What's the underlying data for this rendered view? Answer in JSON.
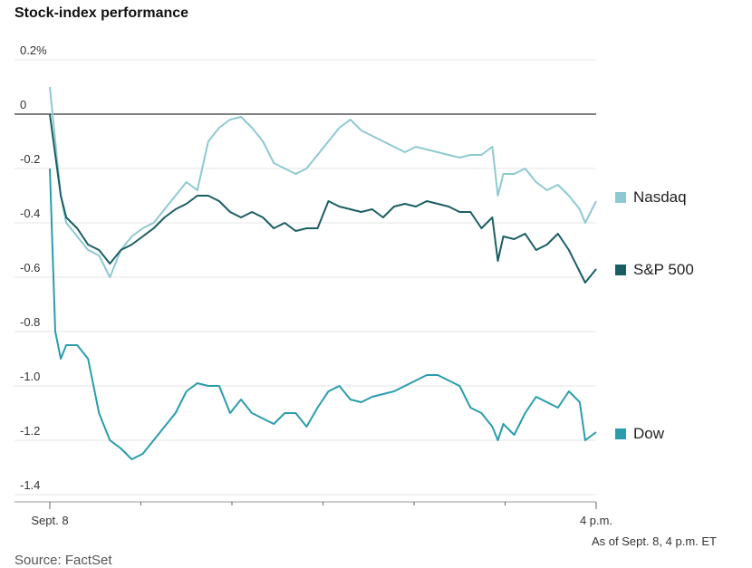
{
  "title": "Stock-index performance",
  "note": "As of Sept. 8, 4 p.m. ET",
  "source": "Source: FactSet",
  "colors": {
    "nasdaq": "#8ec9d2",
    "sp500": "#1a5e63",
    "dow": "#2a9cad",
    "grid": "#e4e4e4",
    "zero": "#333333"
  },
  "chart_data": {
    "type": "line",
    "title": "Stock-index performance",
    "xlabel": "",
    "ylabel": "",
    "ylim": [
      -1.4,
      0.2
    ],
    "x_tick_labels": [
      "Sept. 8",
      "4 p.m."
    ],
    "y_ticks": [
      0.2,
      0,
      -0.2,
      -0.4,
      -0.6,
      -0.8,
      -1.0,
      -1.2,
      -1.4
    ],
    "y_tick_labels": [
      "0.2%",
      "0",
      "-0.2",
      "-0.4",
      "-0.6",
      "-0.8",
      "-1.0",
      "-1.2",
      "-1.4"
    ],
    "x_unit": "fraction of trading session (0 = open, 1 = 4 p.m.)",
    "legend_placement": "right",
    "grid": true,
    "series": [
      {
        "name": "Nasdaq",
        "color": "#8ec9d2",
        "x": [
          0,
          0.01,
          0.02,
          0.03,
          0.05,
          0.07,
          0.09,
          0.11,
          0.13,
          0.15,
          0.17,
          0.19,
          0.21,
          0.23,
          0.25,
          0.27,
          0.29,
          0.31,
          0.33,
          0.35,
          0.37,
          0.39,
          0.41,
          0.43,
          0.45,
          0.47,
          0.49,
          0.51,
          0.53,
          0.55,
          0.57,
          0.59,
          0.61,
          0.63,
          0.65,
          0.67,
          0.69,
          0.71,
          0.73,
          0.75,
          0.77,
          0.79,
          0.81,
          0.82,
          0.83,
          0.85,
          0.87,
          0.89,
          0.91,
          0.93,
          0.95,
          0.97,
          0.98,
          1.0
        ],
        "values": [
          0.1,
          -0.1,
          -0.3,
          -0.4,
          -0.45,
          -0.5,
          -0.52,
          -0.6,
          -0.5,
          -0.45,
          -0.42,
          -0.4,
          -0.35,
          -0.3,
          -0.25,
          -0.28,
          -0.1,
          -0.05,
          -0.02,
          -0.01,
          -0.05,
          -0.1,
          -0.18,
          -0.2,
          -0.22,
          -0.2,
          -0.15,
          -0.1,
          -0.05,
          -0.02,
          -0.06,
          -0.08,
          -0.1,
          -0.12,
          -0.14,
          -0.12,
          -0.13,
          -0.14,
          -0.15,
          -0.16,
          -0.15,
          -0.15,
          -0.12,
          -0.3,
          -0.22,
          -0.22,
          -0.2,
          -0.25,
          -0.28,
          -0.26,
          -0.3,
          -0.35,
          -0.4,
          -0.32
        ]
      },
      {
        "name": "S&P 500",
        "color": "#1a5e63",
        "x": [
          0,
          0.01,
          0.02,
          0.03,
          0.05,
          0.07,
          0.09,
          0.11,
          0.13,
          0.15,
          0.17,
          0.19,
          0.21,
          0.23,
          0.25,
          0.27,
          0.29,
          0.31,
          0.33,
          0.35,
          0.37,
          0.39,
          0.41,
          0.43,
          0.45,
          0.47,
          0.49,
          0.51,
          0.53,
          0.55,
          0.57,
          0.59,
          0.61,
          0.63,
          0.65,
          0.67,
          0.69,
          0.71,
          0.73,
          0.75,
          0.77,
          0.79,
          0.81,
          0.82,
          0.83,
          0.85,
          0.87,
          0.89,
          0.91,
          0.93,
          0.95,
          0.97,
          0.98,
          1.0
        ],
        "values": [
          0,
          -0.15,
          -0.3,
          -0.38,
          -0.42,
          -0.48,
          -0.5,
          -0.55,
          -0.5,
          -0.48,
          -0.45,
          -0.42,
          -0.38,
          -0.35,
          -0.33,
          -0.3,
          -0.3,
          -0.32,
          -0.36,
          -0.38,
          -0.36,
          -0.38,
          -0.42,
          -0.4,
          -0.43,
          -0.42,
          -0.42,
          -0.32,
          -0.34,
          -0.35,
          -0.36,
          -0.35,
          -0.38,
          -0.34,
          -0.33,
          -0.34,
          -0.32,
          -0.33,
          -0.34,
          -0.36,
          -0.36,
          -0.42,
          -0.38,
          -0.54,
          -0.45,
          -0.46,
          -0.44,
          -0.5,
          -0.48,
          -0.44,
          -0.5,
          -0.58,
          -0.62,
          -0.57
        ]
      },
      {
        "name": "Dow",
        "color": "#2a9cad",
        "x": [
          0,
          0.01,
          0.02,
          0.03,
          0.05,
          0.07,
          0.09,
          0.11,
          0.13,
          0.15,
          0.17,
          0.19,
          0.21,
          0.23,
          0.25,
          0.27,
          0.29,
          0.31,
          0.33,
          0.35,
          0.37,
          0.39,
          0.41,
          0.43,
          0.45,
          0.47,
          0.49,
          0.51,
          0.53,
          0.55,
          0.57,
          0.59,
          0.61,
          0.63,
          0.65,
          0.67,
          0.69,
          0.71,
          0.73,
          0.75,
          0.77,
          0.79,
          0.81,
          0.82,
          0.83,
          0.85,
          0.87,
          0.89,
          0.91,
          0.93,
          0.95,
          0.97,
          0.98,
          1.0
        ],
        "values": [
          -0.2,
          -0.8,
          -0.9,
          -0.85,
          -0.85,
          -0.9,
          -1.1,
          -1.2,
          -1.23,
          -1.27,
          -1.25,
          -1.2,
          -1.15,
          -1.1,
          -1.02,
          -0.99,
          -1.0,
          -1.0,
          -1.1,
          -1.05,
          -1.1,
          -1.12,
          -1.14,
          -1.1,
          -1.1,
          -1.15,
          -1.08,
          -1.02,
          -1.0,
          -1.05,
          -1.06,
          -1.04,
          -1.03,
          -1.02,
          -1.0,
          -0.98,
          -0.96,
          -0.96,
          -0.98,
          -1.0,
          -1.08,
          -1.1,
          -1.15,
          -1.2,
          -1.14,
          -1.18,
          -1.1,
          -1.04,
          -1.06,
          -1.08,
          -1.02,
          -1.06,
          -1.2,
          -1.17
        ]
      }
    ]
  }
}
